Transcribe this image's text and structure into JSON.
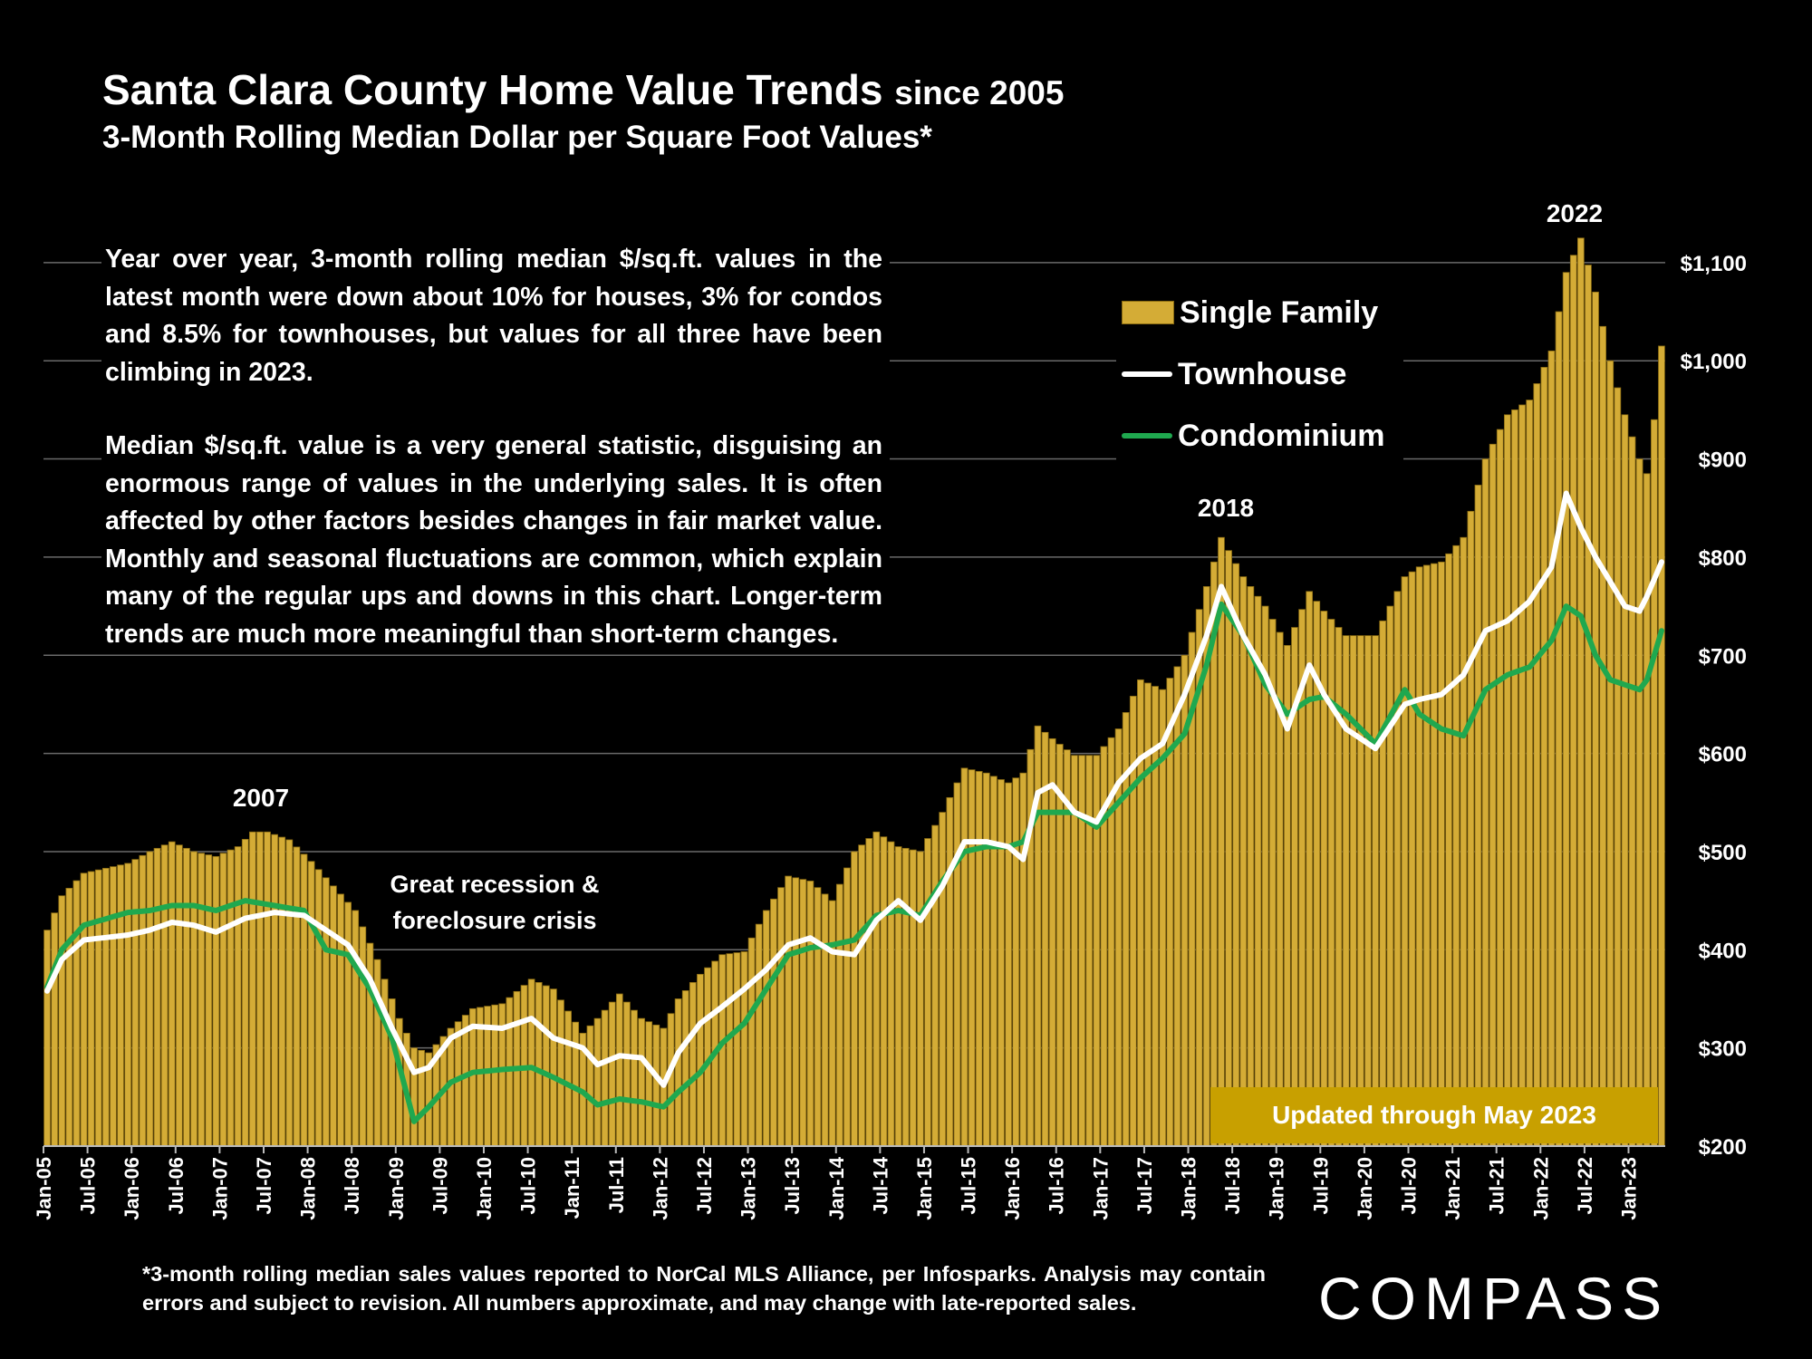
{
  "header": {
    "title": "Santa Clara County Home Value Trends",
    "title_suffix": "since 2005",
    "subtitle": "3-Month Rolling Median Dollar per Square Foot Values*"
  },
  "notes": {
    "paragraph1": "Year over year, 3-month rolling median $/sq.ft. values in the latest month were down about 10% for houses, 3% for condos and 8.5% for townhouses, but values for all three have been climbing in 2023.",
    "paragraph2": "Median $/sq.ft. value is a very general statistic, disguising an enormous range of values in the underlying sales. It is often affected by other factors besides changes in fair market value. Monthly and seasonal fluctuations are common, which explain many of the regular ups and downs in this chart. Longer-term trends are much more meaningful than short-term changes."
  },
  "legend": {
    "single_family": "Single Family",
    "townhouse": "Townhouse",
    "condominium": "Condominium"
  },
  "annotations": {
    "y2007": "2007",
    "recession_line1": "Great recession &",
    "recession_line2": "foreclosure crisis",
    "y2018": "2018",
    "y2022": "2022",
    "updated": "Updated through May 2023"
  },
  "footnote": "*3-month rolling median sales values reported to NorCal MLS Alliance, per Infosparks. Analysis may contain errors and subject to revision. All numbers approximate, and may change with late-reported sales.",
  "logo": "COMPASS",
  "colors": {
    "bar": "#d4ac36",
    "bar_edge": "#8a6b12",
    "townhouse": "#ffffff",
    "condo": "#1fa84f",
    "grid": "#6a6a6a",
    "updated_bg": "#c8a000"
  },
  "chart_data": {
    "type": "bar",
    "title": "Santa Clara County Home Value Trends since 2005",
    "subtitle": "3-Month Rolling Median Dollar per Square Foot Values*",
    "x_start": "Jan-05",
    "x_end": "May-23",
    "x_tick_labels": [
      "Jan-05",
      "Jul-05",
      "Jan-06",
      "Jul-06",
      "Jan-07",
      "Jul-07",
      "Jan-08",
      "Jul-08",
      "Jan-09",
      "Jul-09",
      "Jan-10",
      "Jul-10",
      "Jan-11",
      "Jul-11",
      "Jan-12",
      "Jul-12",
      "Jan-13",
      "Jul-13",
      "Jan-14",
      "Jul-14",
      "Jan-15",
      "Jul-15",
      "Jan-16",
      "Jul-16",
      "Jan-17",
      "Jul-17",
      "Jan-18",
      "Jul-18",
      "Jan-19",
      "Jul-19",
      "Jan-20",
      "Jul-20",
      "Jan-21",
      "Jul-21",
      "Jan-22",
      "Jul-22",
      "Jan-23"
    ],
    "y_tick_labels": [
      "$200",
      "$300",
      "$400",
      "$500",
      "$600",
      "$700",
      "$800",
      "$900",
      "$1,000",
      "$1,100"
    ],
    "ylim": [
      200,
      1140
    ],
    "y_axis_side": "right",
    "grid": true,
    "legend_position": "top-right",
    "series": [
      {
        "name": "Single Family",
        "kind": "bar",
        "knots": [
          [
            "2005-01",
            420
          ],
          [
            "2005-03",
            455
          ],
          [
            "2005-06",
            478
          ],
          [
            "2005-12",
            488
          ],
          [
            "2006-03",
            500
          ],
          [
            "2006-06",
            510
          ],
          [
            "2006-09",
            500
          ],
          [
            "2006-12",
            495
          ],
          [
            "2007-03",
            505
          ],
          [
            "2007-05",
            520
          ],
          [
            "2007-07",
            520
          ],
          [
            "2007-10",
            512
          ],
          [
            "2008-01",
            490
          ],
          [
            "2008-04",
            465
          ],
          [
            "2008-07",
            440
          ],
          [
            "2008-10",
            390
          ],
          [
            "2009-01",
            330
          ],
          [
            "2009-03",
            300
          ],
          [
            "2009-05",
            295
          ],
          [
            "2009-08",
            320
          ],
          [
            "2009-11",
            340
          ],
          [
            "2010-03",
            345
          ],
          [
            "2010-07",
            370
          ],
          [
            "2010-10",
            360
          ],
          [
            "2011-02",
            315
          ],
          [
            "2011-04",
            330
          ],
          [
            "2011-07",
            355
          ],
          [
            "2011-10",
            330
          ],
          [
            "2012-01",
            320
          ],
          [
            "2012-03",
            350
          ],
          [
            "2012-06",
            375
          ],
          [
            "2012-09",
            395
          ],
          [
            "2012-12",
            398
          ],
          [
            "2013-03",
            440
          ],
          [
            "2013-06",
            475
          ],
          [
            "2013-09",
            470
          ],
          [
            "2013-12",
            450
          ],
          [
            "2014-03",
            500
          ],
          [
            "2014-06",
            520
          ],
          [
            "2014-09",
            505
          ],
          [
            "2014-12",
            500
          ],
          [
            "2015-03",
            540
          ],
          [
            "2015-06",
            585
          ],
          [
            "2015-09",
            580
          ],
          [
            "2015-12",
            570
          ],
          [
            "2016-02",
            580
          ],
          [
            "2016-04",
            628
          ],
          [
            "2016-06",
            615
          ],
          [
            "2016-09",
            598
          ],
          [
            "2016-12",
            598
          ],
          [
            "2017-03",
            625
          ],
          [
            "2017-06",
            675
          ],
          [
            "2017-09",
            665
          ],
          [
            "2017-12",
            700
          ],
          [
            "2018-03",
            770
          ],
          [
            "2018-05",
            820
          ],
          [
            "2018-08",
            780
          ],
          [
            "2018-11",
            750
          ],
          [
            "2019-02",
            710
          ],
          [
            "2019-05",
            765
          ],
          [
            "2019-07",
            745
          ],
          [
            "2019-10",
            720
          ],
          [
            "2020-02",
            720
          ],
          [
            "2020-06",
            780
          ],
          [
            "2020-08",
            790
          ],
          [
            "2020-11",
            795
          ],
          [
            "2021-02",
            820
          ],
          [
            "2021-05",
            900
          ],
          [
            "2021-08",
            945
          ],
          [
            "2021-11",
            960
          ],
          [
            "2022-02",
            1010
          ],
          [
            "2022-04",
            1090
          ],
          [
            "2022-06",
            1125
          ],
          [
            "2022-08",
            1070
          ],
          [
            "2022-10",
            1000
          ],
          [
            "2022-12",
            945
          ],
          [
            "2023-02",
            900
          ],
          [
            "2023-03",
            885
          ],
          [
            "2023-04",
            940
          ],
          [
            "2023-05",
            1015
          ]
        ]
      },
      {
        "name": "Townhouse",
        "kind": "line",
        "knots": [
          [
            "2005-01",
            358
          ],
          [
            "2005-03",
            390
          ],
          [
            "2005-06",
            410
          ],
          [
            "2005-12",
            415
          ],
          [
            "2006-03",
            420
          ],
          [
            "2006-06",
            428
          ],
          [
            "2006-09",
            425
          ],
          [
            "2006-12",
            418
          ],
          [
            "2007-04",
            432
          ],
          [
            "2007-08",
            438
          ],
          [
            "2007-12",
            435
          ],
          [
            "2008-03",
            420
          ],
          [
            "2008-06",
            405
          ],
          [
            "2008-09",
            370
          ],
          [
            "2008-12",
            320
          ],
          [
            "2009-03",
            275
          ],
          [
            "2009-05",
            280
          ],
          [
            "2009-08",
            310
          ],
          [
            "2009-11",
            322
          ],
          [
            "2010-03",
            320
          ],
          [
            "2010-07",
            330
          ],
          [
            "2010-10",
            310
          ],
          [
            "2011-02",
            300
          ],
          [
            "2011-04",
            283
          ],
          [
            "2011-07",
            292
          ],
          [
            "2011-10",
            290
          ],
          [
            "2012-01",
            262
          ],
          [
            "2012-03",
            295
          ],
          [
            "2012-06",
            325
          ],
          [
            "2012-09",
            342
          ],
          [
            "2012-12",
            360
          ],
          [
            "2013-03",
            380
          ],
          [
            "2013-06",
            405
          ],
          [
            "2013-09",
            412
          ],
          [
            "2013-12",
            398
          ],
          [
            "2014-03",
            395
          ],
          [
            "2014-06",
            430
          ],
          [
            "2014-09",
            450
          ],
          [
            "2014-12",
            430
          ],
          [
            "2015-03",
            465
          ],
          [
            "2015-06",
            510
          ],
          [
            "2015-09",
            510
          ],
          [
            "2015-12",
            505
          ],
          [
            "2016-02",
            492
          ],
          [
            "2016-04",
            560
          ],
          [
            "2016-06",
            568
          ],
          [
            "2016-09",
            540
          ],
          [
            "2016-12",
            530
          ],
          [
            "2017-03",
            570
          ],
          [
            "2017-06",
            595
          ],
          [
            "2017-09",
            610
          ],
          [
            "2017-12",
            660
          ],
          [
            "2018-03",
            720
          ],
          [
            "2018-05",
            770
          ],
          [
            "2018-08",
            720
          ],
          [
            "2018-11",
            680
          ],
          [
            "2019-02",
            625
          ],
          [
            "2019-05",
            690
          ],
          [
            "2019-07",
            660
          ],
          [
            "2019-10",
            625
          ],
          [
            "2020-02",
            605
          ],
          [
            "2020-06",
            650
          ],
          [
            "2020-08",
            655
          ],
          [
            "2020-11",
            660
          ],
          [
            "2021-02",
            680
          ],
          [
            "2021-05",
            725
          ],
          [
            "2021-08",
            735
          ],
          [
            "2021-11",
            755
          ],
          [
            "2022-02",
            790
          ],
          [
            "2022-04",
            865
          ],
          [
            "2022-06",
            830
          ],
          [
            "2022-08",
            800
          ],
          [
            "2022-10",
            775
          ],
          [
            "2022-12",
            750
          ],
          [
            "2023-02",
            745
          ],
          [
            "2023-03",
            760
          ],
          [
            "2023-05",
            795
          ]
        ]
      },
      {
        "name": "Condominium",
        "kind": "line",
        "knots": [
          [
            "2005-01",
            362
          ],
          [
            "2005-03",
            400
          ],
          [
            "2005-06",
            425
          ],
          [
            "2005-12",
            438
          ],
          [
            "2006-03",
            440
          ],
          [
            "2006-06",
            445
          ],
          [
            "2006-09",
            445
          ],
          [
            "2006-12",
            440
          ],
          [
            "2007-04",
            450
          ],
          [
            "2007-08",
            445
          ],
          [
            "2007-12",
            440
          ],
          [
            "2008-03",
            400
          ],
          [
            "2008-06",
            395
          ],
          [
            "2008-09",
            360
          ],
          [
            "2008-12",
            310
          ],
          [
            "2009-03",
            225
          ],
          [
            "2009-05",
            240
          ],
          [
            "2009-08",
            265
          ],
          [
            "2009-11",
            275
          ],
          [
            "2010-03",
            278
          ],
          [
            "2010-07",
            280
          ],
          [
            "2010-10",
            270
          ],
          [
            "2011-02",
            255
          ],
          [
            "2011-04",
            242
          ],
          [
            "2011-07",
            248
          ],
          [
            "2011-10",
            245
          ],
          [
            "2012-01",
            240
          ],
          [
            "2012-03",
            255
          ],
          [
            "2012-06",
            275
          ],
          [
            "2012-09",
            305
          ],
          [
            "2012-12",
            325
          ],
          [
            "2013-03",
            360
          ],
          [
            "2013-06",
            395
          ],
          [
            "2013-09",
            402
          ],
          [
            "2013-12",
            405
          ],
          [
            "2014-03",
            410
          ],
          [
            "2014-06",
            435
          ],
          [
            "2014-09",
            440
          ],
          [
            "2014-12",
            435
          ],
          [
            "2015-03",
            470
          ],
          [
            "2015-06",
            500
          ],
          [
            "2015-09",
            505
          ],
          [
            "2015-12",
            505
          ],
          [
            "2016-02",
            510
          ],
          [
            "2016-04",
            540
          ],
          [
            "2016-06",
            540
          ],
          [
            "2016-09",
            540
          ],
          [
            "2016-12",
            525
          ],
          [
            "2017-03",
            550
          ],
          [
            "2017-06",
            575
          ],
          [
            "2017-09",
            595
          ],
          [
            "2017-12",
            620
          ],
          [
            "2018-03",
            690
          ],
          [
            "2018-05",
            752
          ],
          [
            "2018-08",
            720
          ],
          [
            "2018-11",
            670
          ],
          [
            "2019-02",
            640
          ],
          [
            "2019-05",
            655
          ],
          [
            "2019-07",
            658
          ],
          [
            "2019-10",
            640
          ],
          [
            "2020-02",
            610
          ],
          [
            "2020-06",
            665
          ],
          [
            "2020-08",
            640
          ],
          [
            "2020-11",
            625
          ],
          [
            "2021-02",
            618
          ],
          [
            "2021-05",
            665
          ],
          [
            "2021-08",
            680
          ],
          [
            "2021-11",
            688
          ],
          [
            "2022-02",
            715
          ],
          [
            "2022-04",
            750
          ],
          [
            "2022-06",
            740
          ],
          [
            "2022-08",
            700
          ],
          [
            "2022-10",
            675
          ],
          [
            "2022-12",
            670
          ],
          [
            "2023-02",
            665
          ],
          [
            "2023-03",
            675
          ],
          [
            "2023-05",
            725
          ]
        ]
      }
    ]
  }
}
